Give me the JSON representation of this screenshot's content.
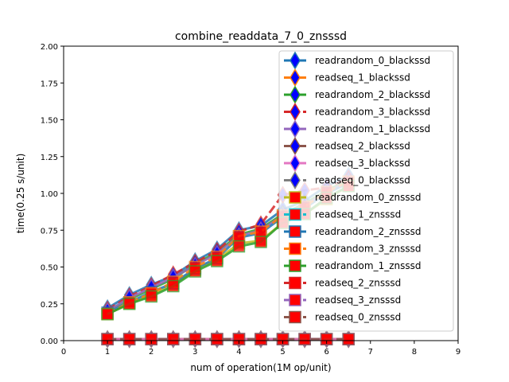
{
  "chart_data": {
    "type": "line",
    "title": "combine_readdata_7_0_znsssd",
    "xlabel": "num of operation(1M op/unit)",
    "ylabel": "time(0.25 s/unit)",
    "xlim": [
      0,
      9
    ],
    "ylim": [
      0,
      2.0
    ],
    "xticks": [
      "0",
      "1",
      "2",
      "3",
      "4",
      "5",
      "6",
      "7",
      "8",
      "9"
    ],
    "yticks": [
      "0.00",
      "0.25",
      "0.50",
      "0.75",
      "1.00",
      "1.25",
      "1.50",
      "1.75",
      "2.00"
    ],
    "grid": false,
    "legend_position": "upper-right",
    "x": [
      1,
      1.5,
      2,
      2.5,
      3,
      3.5,
      4,
      4.5,
      5,
      5.5,
      6,
      6.5
    ],
    "series": [
      {
        "name": "readrandom_0_blackssd",
        "color": "#1f77b4",
        "marker": "diamond",
        "style": "solid",
        "values": [
          0.22,
          0.31,
          0.38,
          0.44,
          0.54,
          0.62,
          0.75,
          0.78,
          0.89,
          0.95,
          1.05,
          1.12
        ]
      },
      {
        "name": "readseq_1_blackssd",
        "color": "#ff7f0e",
        "marker": "diamond",
        "style": "solid",
        "values": [
          0.01,
          0.01,
          0.01,
          0.01,
          0.01,
          0.01,
          0.01,
          0.01,
          0.01,
          0.01,
          0.01,
          0.01
        ]
      },
      {
        "name": "readrandom_2_blackssd",
        "color": "#2ca02c",
        "marker": "diamond",
        "style": "solid",
        "values": [
          0.2,
          0.28,
          0.35,
          0.42,
          0.52,
          0.6,
          0.72,
          0.76,
          0.86,
          0.93,
          1.02,
          1.09
        ]
      },
      {
        "name": "readrandom_3_blackssd",
        "color": "#d62728",
        "marker": "diamond",
        "style": "dashed",
        "values": [
          0.21,
          0.3,
          0.37,
          0.45,
          0.53,
          0.61,
          0.74,
          0.79,
          0.99,
          1.02,
          1.04,
          1.1
        ]
      },
      {
        "name": "readrandom_1_blackssd",
        "color": "#9467bd",
        "marker": "diamond",
        "style": "solid",
        "values": [
          0.2,
          0.29,
          0.36,
          0.43,
          0.51,
          0.59,
          0.71,
          0.75,
          0.85,
          0.92,
          1.01,
          1.08
        ]
      },
      {
        "name": "readseq_2_blackssd",
        "color": "#8c564b",
        "marker": "diamond",
        "style": "solid",
        "values": [
          0.01,
          0.01,
          0.01,
          0.01,
          0.01,
          0.01,
          0.01,
          0.01,
          0.01,
          0.01,
          0.01,
          0.01
        ]
      },
      {
        "name": "readseq_3_blackssd",
        "color": "#e377c2",
        "marker": "diamond",
        "style": "solid",
        "values": [
          0.01,
          0.01,
          0.01,
          0.01,
          0.01,
          0.01,
          0.01,
          0.01,
          0.01,
          0.01,
          0.01,
          0.01
        ]
      },
      {
        "name": "readseq_0_blackssd",
        "color": "#7f7f7f",
        "marker": "diamond",
        "style": "dashed",
        "values": [
          0.01,
          0.01,
          0.01,
          0.01,
          0.01,
          0.01,
          0.01,
          0.01,
          0.01,
          0.01,
          0.01,
          0.01
        ]
      },
      {
        "name": "readrandom_0_znsssd",
        "color": "#bcbd22",
        "marker": "square",
        "style": "solid",
        "values": [
          0.18,
          0.25,
          0.31,
          0.38,
          0.48,
          0.55,
          0.66,
          0.68,
          0.8,
          0.86,
          0.96,
          1.05
        ]
      },
      {
        "name": "readseq_1_znsssd",
        "color": "#17becf",
        "marker": "square",
        "style": "dashed",
        "values": [
          0.01,
          0.01,
          0.01,
          0.01,
          0.01,
          0.01,
          0.01,
          0.01,
          0.01,
          0.01,
          0.01,
          0.01
        ]
      },
      {
        "name": "readrandom_2_znsssd",
        "color": "#1f77b4",
        "marker": "square",
        "style": "solid",
        "values": [
          0.19,
          0.26,
          0.33,
          0.39,
          0.49,
          0.56,
          0.7,
          0.73,
          0.84,
          0.9,
          1.0,
          1.07
        ]
      },
      {
        "name": "readrandom_3_znsssd",
        "color": "#ff7f0e",
        "marker": "square",
        "style": "dashed",
        "values": [
          0.18,
          0.26,
          0.32,
          0.4,
          0.5,
          0.57,
          0.71,
          0.74,
          0.85,
          0.91,
          1.01,
          1.08
        ]
      },
      {
        "name": "readrandom_1_znsssd",
        "color": "#2ca02c",
        "marker": "square",
        "style": "solid",
        "values": [
          0.18,
          0.25,
          0.3,
          0.37,
          0.47,
          0.54,
          0.64,
          0.67,
          0.8,
          0.86,
          0.97,
          1.05
        ]
      },
      {
        "name": "readseq_2_znsssd",
        "color": "#d62728",
        "marker": "square",
        "style": "dashed",
        "values": [
          0.01,
          0.01,
          0.01,
          0.01,
          0.01,
          0.01,
          0.01,
          0.01,
          0.01,
          0.01,
          0.01,
          0.01
        ]
      },
      {
        "name": "readseq_3_znsssd",
        "color": "#9467bd",
        "marker": "square",
        "style": "dashed",
        "values": [
          0.01,
          0.01,
          0.01,
          0.01,
          0.01,
          0.01,
          0.01,
          0.01,
          0.01,
          0.01,
          0.01,
          0.01
        ]
      },
      {
        "name": "readseq_0_znsssd",
        "color": "#8c564b",
        "marker": "square",
        "style": "dashed",
        "values": [
          0.01,
          0.01,
          0.01,
          0.01,
          0.01,
          0.01,
          0.01,
          0.01,
          0.01,
          0.01,
          0.01,
          0.01
        ]
      }
    ]
  }
}
